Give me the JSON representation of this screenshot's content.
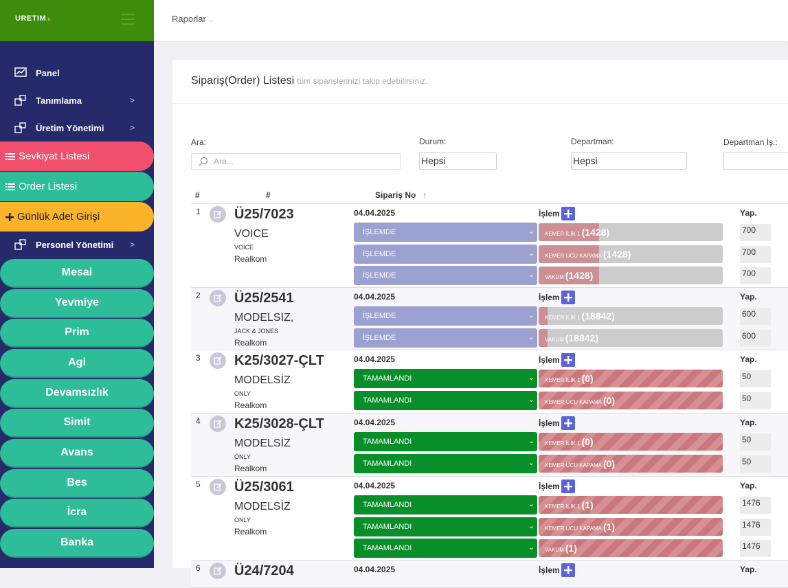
{
  "app": {
    "logo": "URETIM",
    "logo_suffix": ".tr"
  },
  "sidebar": {
    "items": [
      {
        "label": "Panel",
        "icon": "chart-icon",
        "chevron": ""
      },
      {
        "label": "Tanımlama",
        "icon": "boxes-icon",
        "chevron": ">"
      },
      {
        "label": "Üretim Yönetimi",
        "icon": "boxes-icon",
        "chevron": ">"
      }
    ],
    "pills": [
      {
        "label": "Sevkiyat Listesi",
        "color": "#f0506e",
        "icon": "list-icon"
      },
      {
        "label": "Order Listesi",
        "color": "#2dbd98",
        "icon": "list-icon"
      },
      {
        "label": "Günlük Adet Girişi",
        "color": "#fbb42a",
        "icon": "plus-icon"
      }
    ],
    "personel": {
      "label": "Personel Yönetimi",
      "chevron": ">"
    },
    "sub_items": [
      "Mesai",
      "Yevmiye",
      "Prim",
      "Agi",
      "Devamsızlık",
      "Simit",
      "Avans",
      "Bes",
      "İcra",
      "Banka"
    ]
  },
  "topbar": {
    "menu_label": "Raporlar",
    "menu_chevron": "⌵"
  },
  "page": {
    "title": "Sipariş(Order) Listesi",
    "subtitle": "tüm siparişlerinizi takip edebilirsiniz.",
    "filters": {
      "search_label": "Ara:",
      "search_placeholder": "Ara...",
      "durum_label": "Durum:",
      "durum_value": "Hepsi",
      "departman_label": "Departman:",
      "departman_value": "Hepsi",
      "departman_is_label": "Departman İş.:"
    },
    "table": {
      "col_no": "#",
      "col_hash": "#",
      "col_order": "Sipariş No",
      "sort_icon": "↑",
      "islem_label": "İşlem",
      "yap_label": "Yap.",
      "rows": [
        {
          "n": "1",
          "order": "Ü25/7023",
          "model": "VOICE",
          "brand": "VOICE",
          "customer": "Realkom",
          "date": "04.04.2025",
          "ops": [
            {
              "status": "İŞLEMDE",
              "op": "KEMER İLİK 1",
              "count": "(1428)",
              "progress": 0.33,
              "qty": "700"
            },
            {
              "status": "İŞLEMDE",
              "op": "KEMER UCU KAPAMA",
              "count": "(1428)",
              "progress": 0.33,
              "qty": "700"
            },
            {
              "status": "İŞLEMDE",
              "op": "VAKUM",
              "count": "(1428)",
              "progress": 0.33,
              "qty": "700"
            }
          ]
        },
        {
          "n": "2",
          "order": "Ü25/2541",
          "model": "MODELSIZ,",
          "brand": "JACK & JONES",
          "customer": "Realkom",
          "date": "04.04.2025",
          "ops": [
            {
              "status": "İŞLEMDE",
              "op": "KEMER İLİK 1",
              "count": "(18842)",
              "progress": 0.05,
              "qty": "600"
            },
            {
              "status": "İŞLEMDE",
              "op": "VAKUM",
              "count": "(18842)",
              "progress": 0.05,
              "qty": "600"
            }
          ]
        },
        {
          "n": "3",
          "order": "K25/3027-ÇLT",
          "model": "MODELSİZ",
          "brand": "ONLY",
          "customer": "Realkom",
          "date": "04.04.2025",
          "ops": [
            {
              "status": "TAMAMLANDI",
              "op": "KEMER İLİK 1",
              "count": "(0)",
              "progress": 1,
              "qty": "50"
            },
            {
              "status": "TAMAMLANDI",
              "op": "KEMER UCU KAPAMA",
              "count": "(0)",
              "progress": 1,
              "qty": "50"
            }
          ]
        },
        {
          "n": "4",
          "order": "K25/3028-ÇLT",
          "model": "MODELSİZ",
          "brand": "ONLY",
          "customer": "Realkom",
          "date": "04.04.2025",
          "ops": [
            {
              "status": "TAMAMLANDI",
              "op": "KEMER İLİK 1",
              "count": "(0)",
              "progress": 1,
              "qty": "50"
            },
            {
              "status": "TAMAMLANDI",
              "op": "KEMER UCU KAPAMA",
              "count": "(0)",
              "progress": 1,
              "qty": "50"
            }
          ]
        },
        {
          "n": "5",
          "order": "Ü25/3061",
          "model": "MODELSİZ",
          "brand": "ONLY",
          "customer": "Realkom",
          "date": "04.04.2025",
          "ops": [
            {
              "status": "TAMAMLANDI",
              "op": "KEMER İLİK 1",
              "count": "(1)",
              "progress": 1,
              "qty": "1476"
            },
            {
              "status": "TAMAMLANDI",
              "op": "KEMER UCU KAPAMA",
              "count": "(1)",
              "progress": 1,
              "qty": "1476"
            },
            {
              "status": "TAMAMLANDI",
              "op": "VAKUM",
              "count": "(1)",
              "progress": 1,
              "qty": "1476"
            }
          ]
        },
        {
          "n": "6",
          "order": "Ü24/7204",
          "model": "",
          "brand": "",
          "customer": "",
          "date": "04.04.2025",
          "ops": []
        }
      ]
    }
  }
}
